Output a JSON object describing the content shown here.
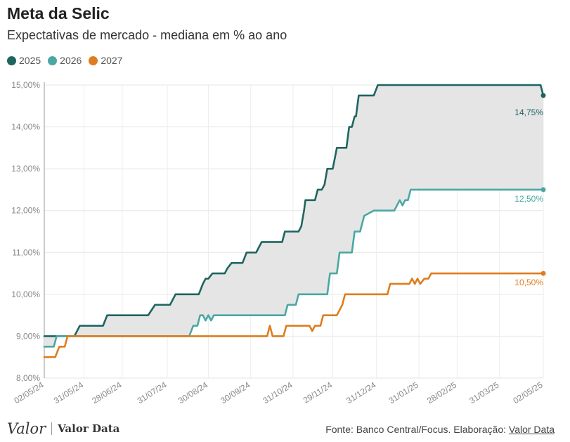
{
  "chart_data": {
    "type": "line",
    "title": "Meta da Selic",
    "subtitle": "Expectativas de mercado - mediana em % ao ano",
    "legend_placement": "top-left",
    "grid": true,
    "y_ticks": [
      "8,00%",
      "9,00%",
      "10,00%",
      "11,00%",
      "12,00%",
      "13,00%",
      "14,00%",
      "15,00%"
    ],
    "x_ticks": [
      "02/05/24",
      "31/05/24",
      "28/06/24",
      "31/07/24",
      "30/08/24",
      "30/09/24",
      "31/10/24",
      "29/11/24",
      "31/12/24",
      "31/01/25",
      "28/02/25",
      "31/03/25",
      "02/05/25"
    ],
    "x_tick_dates": [
      "2024-05-02",
      "2024-05-31",
      "2024-06-28",
      "2024-07-31",
      "2024-08-30",
      "2024-09-30",
      "2024-10-31",
      "2024-11-29",
      "2024-12-31",
      "2025-01-31",
      "2025-02-28",
      "2025-03-31",
      "2025-05-02"
    ],
    "xlim": [
      "2024-05-02",
      "2025-05-02"
    ],
    "ylim": [
      8,
      15
    ],
    "shaded_band": "between 2025 and 2026 series",
    "series": [
      {
        "name": "2025",
        "color": "#1e6560",
        "end_label": "14,75%",
        "points": [
          [
            "2024-05-02",
            9.0
          ],
          [
            "2024-05-24",
            9.0
          ],
          [
            "2024-05-28",
            9.25
          ],
          [
            "2024-06-14",
            9.25
          ],
          [
            "2024-06-17",
            9.5
          ],
          [
            "2024-07-17",
            9.5
          ],
          [
            "2024-07-22",
            9.75
          ],
          [
            "2024-08-02",
            9.75
          ],
          [
            "2024-08-06",
            10.0
          ],
          [
            "2024-08-23",
            10.0
          ],
          [
            "2024-08-26",
            10.25
          ],
          [
            "2024-08-28",
            10.375
          ],
          [
            "2024-08-30",
            10.375
          ],
          [
            "2024-09-02",
            10.5
          ],
          [
            "2024-09-11",
            10.5
          ],
          [
            "2024-09-13",
            10.625
          ],
          [
            "2024-09-16",
            10.75
          ],
          [
            "2024-09-24",
            10.75
          ],
          [
            "2024-09-27",
            11.0
          ],
          [
            "2024-10-04",
            11.0
          ],
          [
            "2024-10-08",
            11.25
          ],
          [
            "2024-10-23",
            11.25
          ],
          [
            "2024-10-25",
            11.5
          ],
          [
            "2024-11-04",
            11.5
          ],
          [
            "2024-11-06",
            11.625
          ],
          [
            "2024-11-08",
            12.0
          ],
          [
            "2024-11-09",
            12.25
          ],
          [
            "2024-11-16",
            12.25
          ],
          [
            "2024-11-18",
            12.5
          ],
          [
            "2024-11-21",
            12.5
          ],
          [
            "2024-11-23",
            12.625
          ],
          [
            "2024-11-25",
            13.0
          ],
          [
            "2024-11-29",
            13.0
          ],
          [
            "2024-12-02",
            13.5
          ],
          [
            "2024-12-09",
            13.5
          ],
          [
            "2024-12-11",
            14.0
          ],
          [
            "2024-12-13",
            14.0
          ],
          [
            "2024-12-15",
            14.25
          ],
          [
            "2024-12-16",
            14.25
          ],
          [
            "2024-12-18",
            14.75
          ],
          [
            "2024-12-29",
            14.75
          ],
          [
            "2025-01-01",
            15.0
          ],
          [
            "2025-04-30",
            15.0
          ],
          [
            "2025-05-02",
            14.75
          ]
        ]
      },
      {
        "name": "2026",
        "color": "#4aa7a3",
        "end_label": "12,50%",
        "points": [
          [
            "2024-05-02",
            8.75
          ],
          [
            "2024-05-09",
            8.75
          ],
          [
            "2024-05-11",
            9.0
          ],
          [
            "2024-08-16",
            9.0
          ],
          [
            "2024-08-19",
            9.25
          ],
          [
            "2024-08-22",
            9.25
          ],
          [
            "2024-08-24",
            9.5
          ],
          [
            "2024-08-26",
            9.5
          ],
          [
            "2024-08-28",
            9.375
          ],
          [
            "2024-08-30",
            9.5
          ],
          [
            "2024-09-01",
            9.375
          ],
          [
            "2024-09-03",
            9.5
          ],
          [
            "2024-10-25",
            9.5
          ],
          [
            "2024-10-27",
            9.75
          ],
          [
            "2024-11-02",
            9.75
          ],
          [
            "2024-11-04",
            10.0
          ],
          [
            "2024-11-25",
            10.0
          ],
          [
            "2024-11-27",
            10.5
          ],
          [
            "2024-12-02",
            10.5
          ],
          [
            "2024-12-04",
            11.0
          ],
          [
            "2024-12-13",
            11.0
          ],
          [
            "2024-12-15",
            11.5
          ],
          [
            "2024-12-19",
            11.5
          ],
          [
            "2024-12-22",
            11.875
          ],
          [
            "2024-12-29",
            12.0
          ],
          [
            "2025-01-13",
            12.0
          ],
          [
            "2025-01-17",
            12.25
          ],
          [
            "2025-01-19",
            12.125
          ],
          [
            "2025-01-21",
            12.25
          ],
          [
            "2025-01-23",
            12.25
          ],
          [
            "2025-01-25",
            12.5
          ],
          [
            "2025-05-02",
            12.5
          ]
        ]
      },
      {
        "name": "2027",
        "color": "#de7d1e",
        "end_label": "10,50%",
        "points": [
          [
            "2024-05-02",
            8.5
          ],
          [
            "2024-05-10",
            8.5
          ],
          [
            "2024-05-13",
            8.75
          ],
          [
            "2024-05-17",
            8.75
          ],
          [
            "2024-05-19",
            9.0
          ],
          [
            "2024-10-12",
            9.0
          ],
          [
            "2024-10-14",
            9.25
          ],
          [
            "2024-10-16",
            9.0
          ],
          [
            "2024-10-24",
            9.0
          ],
          [
            "2024-10-26",
            9.25
          ],
          [
            "2024-11-12",
            9.25
          ],
          [
            "2024-11-14",
            9.125
          ],
          [
            "2024-11-16",
            9.25
          ],
          [
            "2024-11-20",
            9.25
          ],
          [
            "2024-11-22",
            9.5
          ],
          [
            "2024-12-02",
            9.5
          ],
          [
            "2024-12-06",
            9.75
          ],
          [
            "2024-12-08",
            10.0
          ],
          [
            "2025-01-08",
            10.0
          ],
          [
            "2025-01-10",
            10.25
          ],
          [
            "2025-01-24",
            10.25
          ],
          [
            "2025-01-26",
            10.375
          ],
          [
            "2025-01-28",
            10.25
          ],
          [
            "2025-01-30",
            10.375
          ],
          [
            "2025-02-01",
            10.25
          ],
          [
            "2025-02-04",
            10.375
          ],
          [
            "2025-02-07",
            10.375
          ],
          [
            "2025-02-09",
            10.5
          ],
          [
            "2025-05-02",
            10.5
          ]
        ]
      }
    ]
  },
  "footer": {
    "logo_valor": "Valor",
    "logo_valor_data": "Valor Data",
    "source_text": "Fonte: Banco Central/Focus. Elaboração: ",
    "source_link": "Valor Data"
  }
}
